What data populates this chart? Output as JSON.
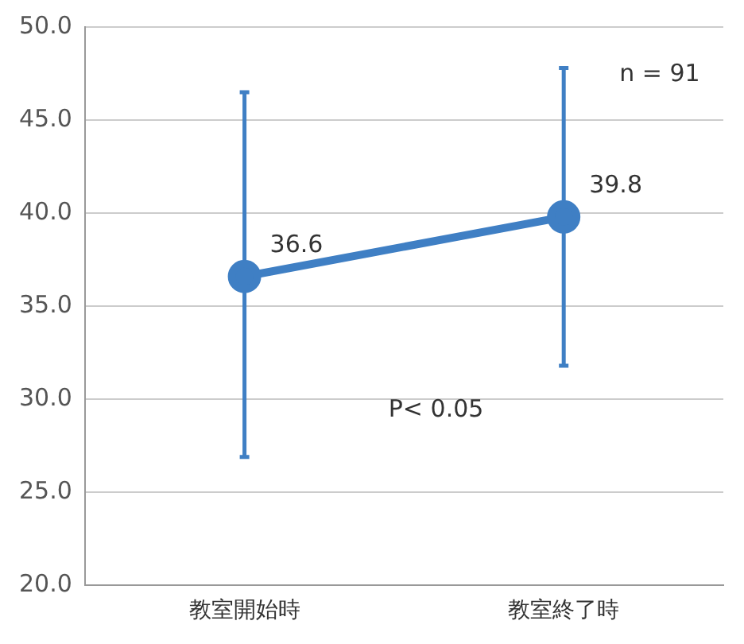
{
  "chart_data": {
    "type": "line",
    "categories": [
      "教室開始時",
      "教室終了時"
    ],
    "series": [
      {
        "color": "#3f7fc4",
        "values": [
          36.6,
          39.8
        ],
        "errors": [
          [
            26.9,
            46.5
          ],
          [
            31.8,
            47.8
          ]
        ]
      }
    ],
    "ylim": [
      20,
      50
    ],
    "yticks": [
      {
        "value": 20,
        "label": "20.0"
      },
      {
        "value": 25,
        "label": "25.0"
      },
      {
        "value": 30,
        "label": "30.0"
      },
      {
        "value": 35,
        "label": "35.0"
      },
      {
        "value": 40,
        "label": "40.0"
      },
      {
        "value": 45,
        "label": "45.0"
      },
      {
        "value": 50,
        "label": "50.0"
      }
    ],
    "grid": "y",
    "marker": "circle",
    "line_style": "solid",
    "data_labels": true,
    "legend": false,
    "annotations": [
      "n = 91",
      "P< 0.05"
    ]
  }
}
